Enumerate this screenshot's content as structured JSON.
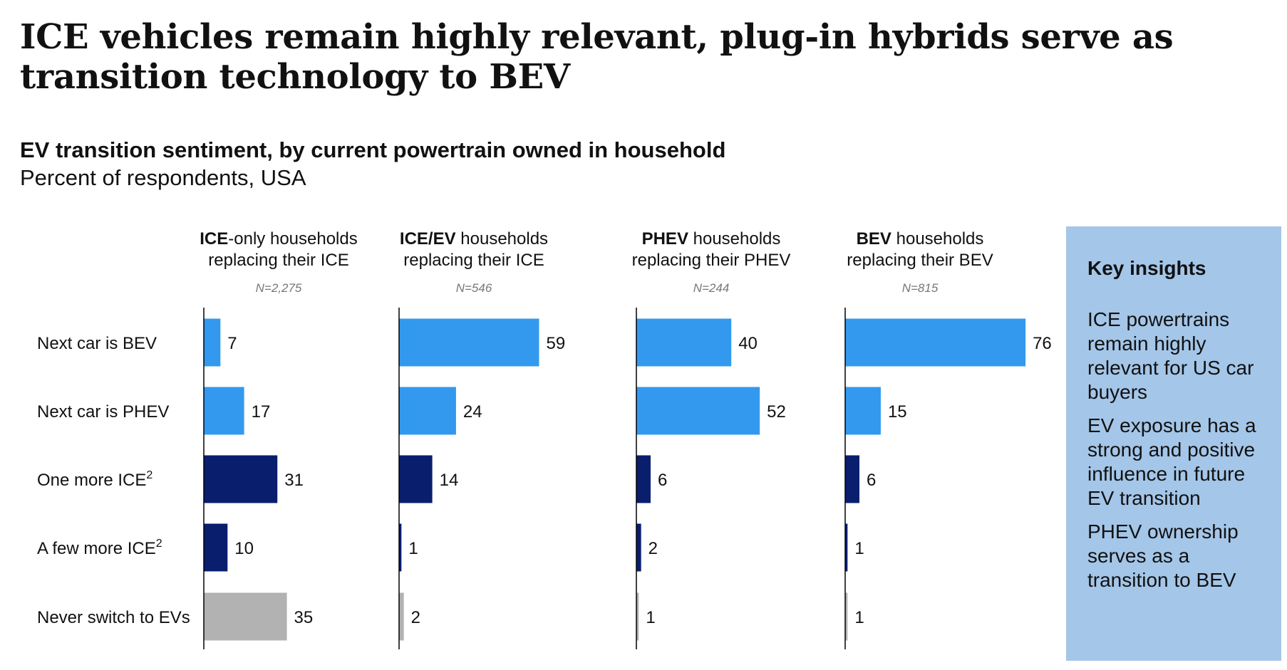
{
  "title": "ICE vehicles remain highly relevant, plug-in hybrids serve as transition technology to BEV",
  "subtitle": "EV transition sentiment, by current powertrain owned in household",
  "units": "Percent of respondents, USA",
  "insights": {
    "heading": "Key insights",
    "items": [
      "ICE powertrains remain highly relevant for US car buyers",
      "EV exposure has a strong and positive influence in future EV transition",
      "PHEV ownership serves as a transition to BEV"
    ],
    "background": "#a4c6e8"
  },
  "colors": {
    "bev": "#3399ee",
    "phev": "#3399ee",
    "ice": "#0a1e6e",
    "never": "#b2b2b2",
    "axis": "#000000"
  },
  "chart_data": {
    "type": "bar",
    "orientation": "horizontal",
    "categories": [
      "Next car is BEV",
      "Next car is PHEV",
      "One more ICE",
      "A few more ICE",
      "Never switch to EVs"
    ],
    "category_superscripts": [
      "",
      "",
      "2",
      "2",
      ""
    ],
    "category_colors": [
      "#3399ee",
      "#3399ee",
      "#0a1e6e",
      "#0a1e6e",
      "#b2b2b2"
    ],
    "panels": [
      {
        "title_bold": "ICE",
        "title_rest": "-only households",
        "title_line2": "replacing their ICE",
        "n": "N=2,275",
        "values": [
          7,
          17,
          31,
          10,
          35
        ]
      },
      {
        "title_bold": "ICE/EV",
        "title_rest": " households",
        "title_line2": "replacing their ICE",
        "n": "N=546",
        "values": [
          59,
          24,
          14,
          1,
          2
        ]
      },
      {
        "title_bold": "PHEV",
        "title_rest": " households",
        "title_line2": "replacing their PHEV",
        "n": "N=244",
        "values": [
          40,
          52,
          6,
          2,
          1
        ]
      },
      {
        "title_bold": "BEV",
        "title_rest": " households",
        "title_line2": "replacing their BEV",
        "n": "N=815",
        "values": [
          76,
          15,
          6,
          1,
          1
        ]
      }
    ]
  }
}
